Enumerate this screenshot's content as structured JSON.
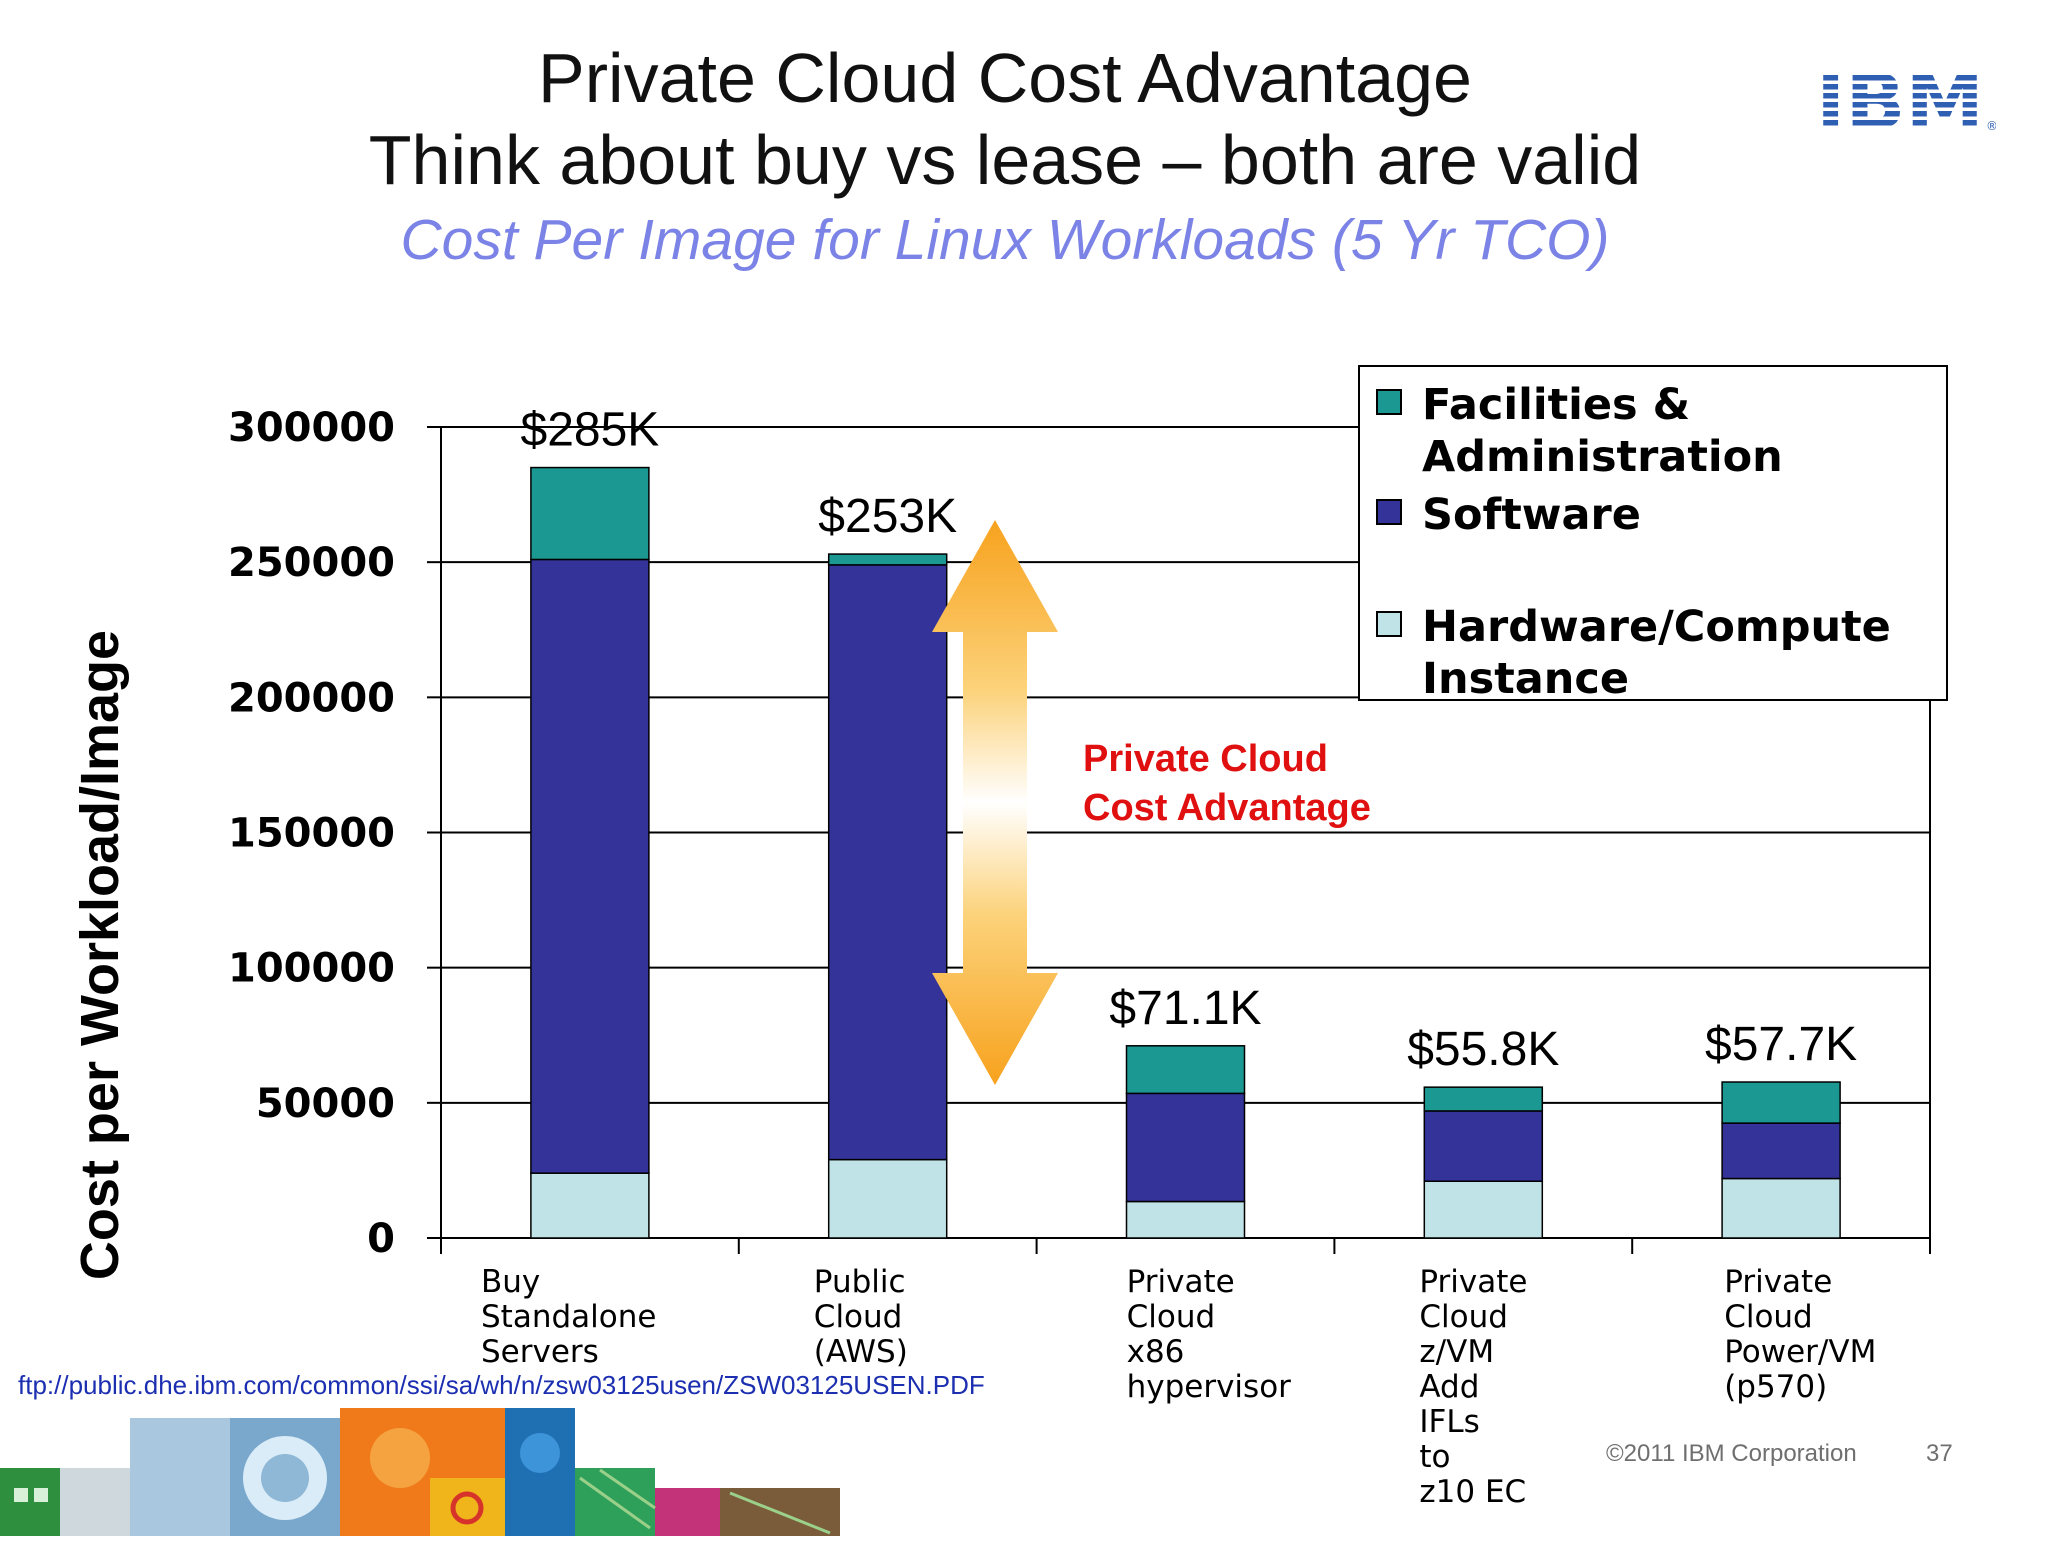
{
  "slide": {
    "title_line1": "Private Cloud Cost Advantage",
    "title_line2": "Think about buy vs lease – both are valid",
    "source": "ftp://public.dhe.ibm.com/common/ssi/sa/wh/n/zsw03125usen/ZSW03125USEN.PDF",
    "copyright": "©2011 IBM Corporation",
    "page_number": "37",
    "logo_text": "IBM"
  },
  "chart_data": {
    "type": "bar",
    "stacked": true,
    "title": "",
    "subtitle": "Cost Per Image for Linux Workloads (5 Yr TCO)",
    "ylabel": "Cost per Workload/Image",
    "xlabel": "",
    "ylim": [
      0,
      300000
    ],
    "yticks": [
      "0",
      "50000",
      "100000",
      "150000",
      "200000",
      "250000",
      "300000"
    ],
    "grid": true,
    "legend_position": "top-right",
    "categories": [
      "Buy\nStandalone\nServers",
      "Public\nCloud\n(AWS)",
      "Private\nCloud\nx86\nhypervisor",
      "Private\nCloud\nz/VM\n Add IFLs\nto\nz10 EC",
      "Private\nCloud\nPower/VM\n(p570)"
    ],
    "series": [
      {
        "name": "Hardware/Compute\nInstance",
        "color": "#bfe3e6",
        "values": [
          24000,
          29000,
          13500,
          21000,
          22000
        ]
      },
      {
        "name": "Software",
        "color": "#333399",
        "values": [
          227000,
          220000,
          40000,
          26000,
          20500
        ]
      },
      {
        "name": "Facilities &\nAdministration",
        "color": "#1c9893",
        "values": [
          34000,
          4000,
          17600,
          8800,
          15200
        ]
      }
    ],
    "totals": [
      "$285K",
      "$253K",
      "$71.1K",
      "$55.8K",
      "$57.7K"
    ],
    "annotation": "Private Cloud\nCost Advantage"
  }
}
